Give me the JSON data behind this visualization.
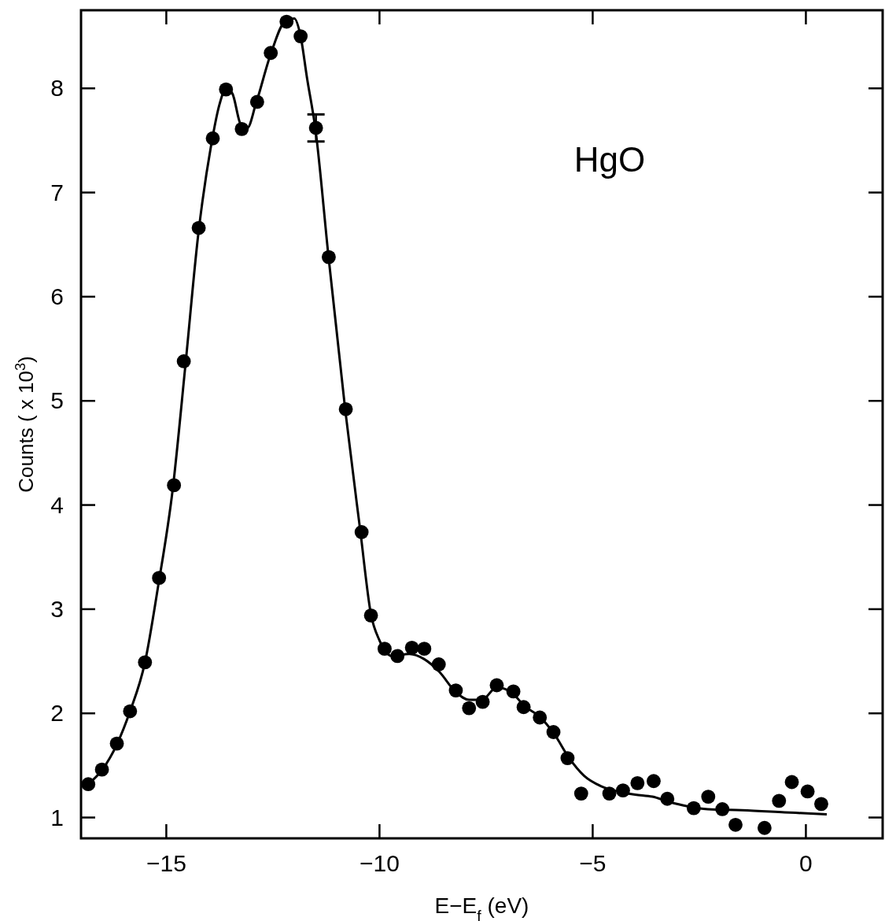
{
  "chart_data": {
    "type": "scatter",
    "xlabel": "E−E$_{f}$ (eV)",
    "ylabel": "Counts ( x 10$^{3}$)",
    "annotations": [
      "HgO"
    ],
    "xlim": [
      -17,
      1.8
    ],
    "ylim": [
      0.8,
      8.75
    ],
    "xticks": [
      -15,
      -10,
      -5,
      0
    ],
    "yticks": [
      1,
      2,
      3,
      4,
      5,
      6,
      7,
      8
    ],
    "grid": false,
    "series": [
      {
        "color": "#000000",
        "marker": "circle",
        "x": [
          -16.83,
          -16.51,
          -16.16,
          -15.85,
          -15.5,
          -15.17,
          -14.82,
          -14.59,
          -14.24,
          -13.91,
          -13.6,
          -13.23,
          -12.87,
          -12.55,
          -12.18,
          -11.85,
          -11.49,
          -11.19,
          -10.79,
          -10.42,
          -10.2,
          -9.88,
          -9.58,
          -9.24,
          -8.95,
          -8.61,
          -8.21,
          -7.9,
          -7.58,
          -7.25,
          -6.86,
          -6.62,
          -6.24,
          -5.92,
          -5.59,
          -5.27,
          -4.61,
          -4.29,
          -3.95,
          -3.57,
          -3.25,
          -2.63,
          -2.29,
          -1.96,
          -1.65,
          -0.97,
          -0.63,
          -0.33,
          0.04,
          0.36
        ],
        "values": [
          1.32,
          1.46,
          1.71,
          2.02,
          2.49,
          3.3,
          4.19,
          5.38,
          6.66,
          7.52,
          7.99,
          7.61,
          7.87,
          8.34,
          8.64,
          8.5,
          7.62,
          6.38,
          4.92,
          3.74,
          2.94,
          2.62,
          2.55,
          2.63,
          2.62,
          2.47,
          2.22,
          2.05,
          2.11,
          2.27,
          2.21,
          2.06,
          1.96,
          1.82,
          1.57,
          1.23,
          1.23,
          1.26,
          1.33,
          1.35,
          1.18,
          1.09,
          1.2,
          1.08,
          0.93,
          0.9,
          1.16,
          1.34,
          1.25,
          1.13
        ],
        "errors": [
          null,
          null,
          null,
          null,
          null,
          null,
          null,
          null,
          null,
          null,
          null,
          null,
          null,
          null,
          null,
          null,
          0.13,
          null,
          null,
          null,
          null,
          null,
          null,
          null,
          null,
          null,
          null,
          null,
          null,
          null,
          null,
          null,
          null,
          null,
          null,
          null,
          null,
          null,
          null,
          null,
          null,
          null,
          null,
          null,
          null,
          null,
          null,
          null,
          null,
          null
        ]
      },
      {
        "type": "line",
        "color": "#000000",
        "marker": "none",
        "line_style": "solid",
        "x": [
          -16.83,
          -16.5,
          -16.15,
          -15.85,
          -15.5,
          -15.2,
          -14.85,
          -14.55,
          -14.25,
          -13.95,
          -13.75,
          -13.6,
          -13.45,
          -13.25,
          -13.1,
          -12.9,
          -12.55,
          -12.2,
          -12.0,
          -11.85,
          -11.7,
          -11.5,
          -11.2,
          -10.8,
          -10.45,
          -10.2,
          -10.0,
          -9.7,
          -9.3,
          -8.95,
          -8.6,
          -8.2,
          -7.9,
          -7.6,
          -7.25,
          -6.9,
          -6.6,
          -6.25,
          -5.9,
          -5.55,
          -5.2,
          -4.8,
          -4.4,
          -4.0,
          -3.6,
          -3.2,
          -2.8,
          -2.3,
          -1.5,
          -0.5,
          0.49
        ],
        "values": [
          1.32,
          1.46,
          1.71,
          2.02,
          2.49,
          3.2,
          4.15,
          5.35,
          6.6,
          7.45,
          7.85,
          8.0,
          7.95,
          7.65,
          7.62,
          7.85,
          8.33,
          8.65,
          8.67,
          8.5,
          8.1,
          7.6,
          6.4,
          4.9,
          3.75,
          2.95,
          2.7,
          2.55,
          2.57,
          2.52,
          2.4,
          2.2,
          2.13,
          2.13,
          2.25,
          2.2,
          2.07,
          1.97,
          1.8,
          1.57,
          1.4,
          1.3,
          1.25,
          1.22,
          1.2,
          1.15,
          1.11,
          1.08,
          1.07,
          1.05,
          1.03
        ]
      }
    ]
  }
}
